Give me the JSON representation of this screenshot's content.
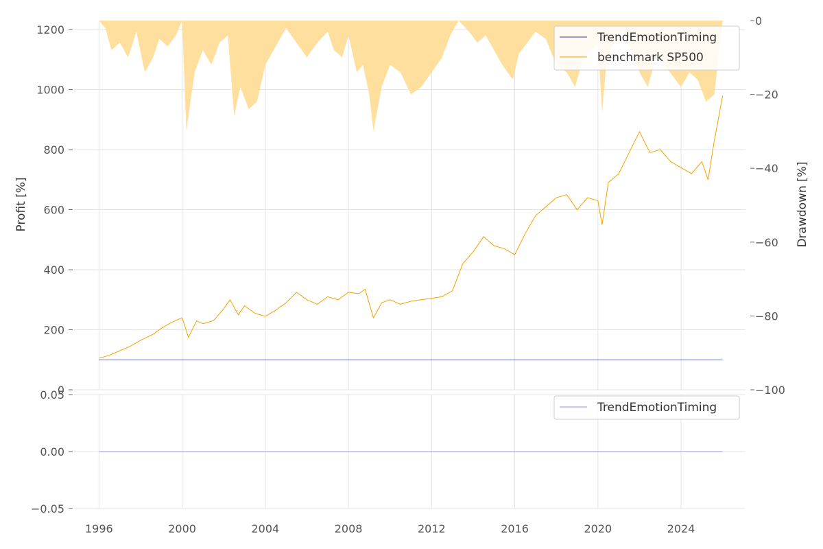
{
  "chart_data": [
    {
      "type": "line",
      "panel": "top",
      "ylabel": "Profit [%]",
      "y2label": "Drawdown [%]",
      "xlim": [
        1994.8,
        2027.1
      ],
      "ylim": [
        0,
        1230
      ],
      "y2lim": [
        -100,
        0
      ],
      "x_ticks": [
        "1996",
        "2000",
        "2004",
        "2008",
        "2012",
        "2016",
        "2020",
        "2024"
      ],
      "y_ticks": [
        "0",
        "200",
        "400",
        "600",
        "800",
        "1000",
        "1200"
      ],
      "y2_ticks": [
        "−100",
        "−80",
        "−60",
        "−40",
        "−20",
        "0"
      ],
      "legend_placement": "top-right",
      "grid": true,
      "series": [
        {
          "name": "TrendEmotionTiming",
          "color": "#3b3b8f",
          "x": [
            1996.0,
            2026.0
          ],
          "y": [
            100,
            100
          ]
        },
        {
          "name": "benchmark SP500",
          "color": "#f5a000",
          "x": [
            1996.0,
            1996.5,
            1997.0,
            1997.5,
            1998.0,
            1998.6,
            1999.0,
            1999.5,
            2000.0,
            2000.3,
            2000.7,
            2001.0,
            2001.5,
            2002.0,
            2002.3,
            2002.7,
            2003.0,
            2003.5,
            2004.0,
            2004.5,
            2005.0,
            2005.5,
            2006.0,
            2006.5,
            2007.0,
            2007.5,
            2008.0,
            2008.5,
            2008.8,
            2009.2,
            2009.6,
            2010.0,
            2010.5,
            2011.0,
            2011.5,
            2012.0,
            2012.5,
            2013.0,
            2013.5,
            2014.0,
            2014.5,
            2015.0,
            2015.5,
            2016.0,
            2016.5,
            2017.0,
            2017.5,
            2018.0,
            2018.5,
            2019.0,
            2019.5,
            2020.0,
            2020.2,
            2020.5,
            2021.0,
            2021.5,
            2022.0,
            2022.5,
            2023.0,
            2023.5,
            2024.0,
            2024.5,
            2025.0,
            2025.3,
            2025.6,
            2026.0
          ],
          "y": [
            105,
            115,
            130,
            145,
            165,
            185,
            205,
            225,
            240,
            175,
            230,
            220,
            230,
            270,
            300,
            250,
            280,
            255,
            245,
            265,
            290,
            325,
            300,
            285,
            310,
            300,
            325,
            320,
            335,
            240,
            290,
            300,
            285,
            295,
            300,
            305,
            310,
            330,
            420,
            460,
            510,
            480,
            470,
            450,
            520,
            580,
            610,
            640,
            650,
            600,
            640,
            630,
            550,
            690,
            720,
            790,
            860,
            790,
            800,
            760,
            740,
            720,
            760,
            700,
            830,
            980
          ]
        }
      ],
      "drawdown": {
        "name": "drawdown",
        "color": "#ffdf9e",
        "x": [
          1996.0,
          1996.3,
          1996.6,
          1997.0,
          1997.4,
          1997.8,
          1998.2,
          1998.6,
          1998.9,
          1999.3,
          1999.7,
          2000.0,
          2000.2,
          2000.6,
          2001.0,
          2001.4,
          2001.8,
          2002.2,
          2002.5,
          2002.8,
          2003.2,
          2003.6,
          2004.0,
          2004.4,
          2004.8,
          2005.0,
          2005.5,
          2006.0,
          2006.5,
          2007.0,
          2007.3,
          2007.7,
          2008.0,
          2008.4,
          2008.7,
          2009.0,
          2009.2,
          2009.6,
          2010.0,
          2010.5,
          2011.0,
          2011.5,
          2012.0,
          2012.5,
          2012.9,
          2013.3,
          2013.8,
          2014.2,
          2014.6,
          2015.0,
          2015.4,
          2015.9,
          2016.2,
          2016.6,
          2017.0,
          2017.5,
          2018.0,
          2018.5,
          2018.9,
          2019.3,
          2019.7,
          2020.0,
          2020.2,
          2020.4,
          2020.8,
          2021.2,
          2021.6,
          2022.0,
          2022.4,
          2022.8,
          2023.2,
          2023.6,
          2024.0,
          2024.4,
          2024.8,
          2025.2,
          2025.6,
          2026.0
        ],
        "y": [
          0,
          -2,
          -8,
          -6,
          -10,
          -3,
          -14,
          -10,
          -5,
          -7,
          -4,
          0,
          -30,
          -14,
          -8,
          -12,
          -6,
          -4,
          -26,
          -18,
          -24,
          -22,
          -12,
          -8,
          -4,
          -2,
          -6,
          -10,
          -6,
          -3,
          -8,
          -10,
          -4,
          -14,
          -12,
          -20,
          -30,
          -18,
          -12,
          -14,
          -20,
          -18,
          -14,
          -10,
          -4,
          0,
          -3,
          -6,
          -4,
          -8,
          -12,
          -16,
          -9,
          -6,
          -3,
          -5,
          -12,
          -14,
          -18,
          -10,
          -8,
          -6,
          -25,
          -12,
          -5,
          -3,
          -8,
          -14,
          -18,
          -10,
          -12,
          -15,
          -18,
          -14,
          -16,
          -22,
          -20,
          0
        ]
      }
    },
    {
      "type": "line",
      "panel": "bottom",
      "xlim": [
        1994.8,
        2027.1
      ],
      "ylim": [
        -0.05,
        0.05
      ],
      "y_ticks": [
        "−0.05",
        "0.00",
        "0.05"
      ],
      "y_tick_values": [
        -0.05,
        0.0,
        0.05
      ],
      "legend_placement": "top-right",
      "grid": true,
      "series": [
        {
          "name": "TrendEmotionTiming",
          "color": "#aaaaee",
          "x": [
            1996.0,
            2026.0
          ],
          "y": [
            0,
            0
          ]
        }
      ]
    }
  ]
}
